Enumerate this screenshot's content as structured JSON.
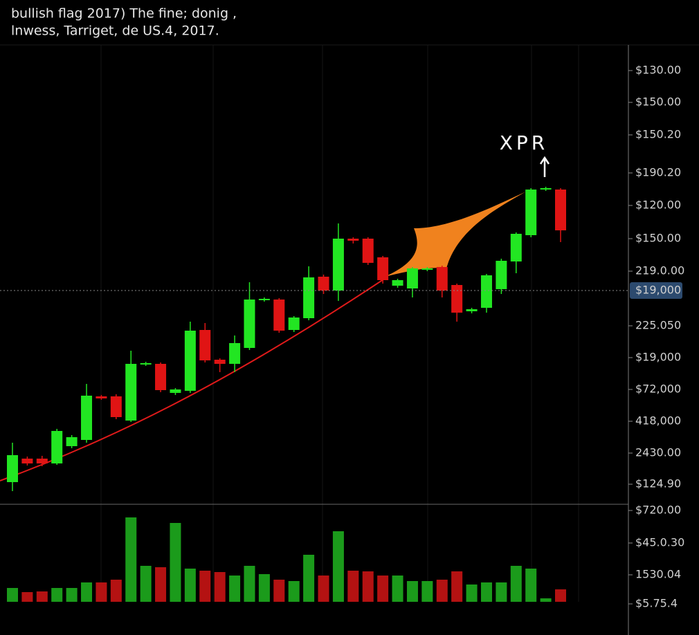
{
  "chart_data": {
    "type": "candlestick",
    "title": "bullish flag 2017) The fine; donig ,",
    "subtitle": "lnwess, Tarriget, de US.4, 2017.",
    "annotation": "XPR",
    "price_axis_labels": [
      "$130.00",
      "$150.00",
      "$150.20",
      "$190.20",
      "$120.00",
      "$150.00",
      "219.0.00",
      "225.050",
      "$19,000",
      "$72,000",
      "418,000",
      "2430.00",
      "$124.90"
    ],
    "volume_axis_labels": [
      "$720.00",
      "$45.0.30",
      "1530.04",
      "$5.75.4"
    ],
    "price_marker": {
      "label": "$19,000",
      "value": 310
    },
    "ylim": [
      0,
      665
    ],
    "volume_ylim": [
      0,
      140
    ],
    "up_color": "#22e622",
    "down_color": "#e01414",
    "volume_up_color": "#1b9b1b",
    "volume_down_color": "#b41212",
    "open": [
      33,
      67,
      67,
      60,
      85,
      94,
      157,
      157,
      122,
      203,
      204,
      162,
      165,
      253,
      210,
      204,
      227,
      296,
      297,
      253,
      270,
      330,
      310,
      385,
      385,
      358,
      317,
      313,
      340,
      344,
      318,
      280,
      285,
      312,
      352,
      390,
      456,
      456
    ],
    "close": [
      72,
      60,
      60,
      107,
      98,
      158,
      154,
      127,
      204,
      205,
      166,
      167,
      252,
      209,
      204,
      234,
      297,
      298,
      252,
      271,
      329,
      310,
      385,
      382,
      350,
      325,
      325,
      342,
      342,
      310,
      278,
      283,
      332,
      353,
      392,
      456,
      458,
      397
    ],
    "high": [
      90,
      70,
      71,
      110,
      101,
      175,
      159,
      160,
      223,
      207,
      206,
      169,
      265,
      263,
      212,
      245,
      322,
      300,
      299,
      273,
      345,
      333,
      407,
      387,
      387,
      360,
      327,
      344,
      344,
      346,
      320,
      285,
      334,
      356,
      394,
      458,
      460,
      458
    ],
    "low": [
      20,
      57,
      56,
      58,
      82,
      90,
      152,
      124,
      120,
      201,
      163,
      159,
      162,
      206,
      192,
      192,
      224,
      294,
      249,
      250,
      267,
      305,
      295,
      378,
      347,
      320,
      314,
      300,
      338,
      300,
      265,
      277,
      278,
      305,
      335,
      387,
      454,
      380
    ],
    "volume": [
      20,
      14,
      15,
      20,
      20,
      28,
      28,
      32,
      122,
      52,
      50,
      114,
      48,
      45,
      43,
      38,
      52,
      40,
      32,
      30,
      68,
      38,
      102,
      45,
      44,
      38,
      38,
      30,
      30,
      32,
      44,
      25,
      28,
      28,
      52,
      48,
      5,
      18
    ]
  }
}
